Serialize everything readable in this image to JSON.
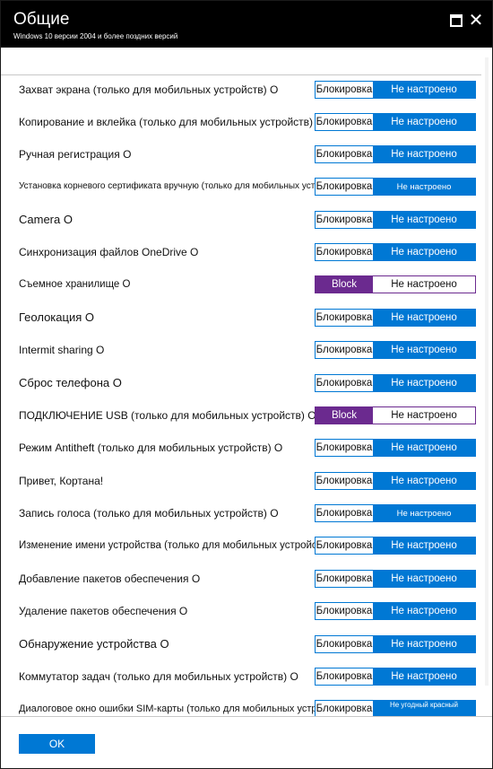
{
  "header": {
    "title": "Общие",
    "subtitle": "Windows 10 версии 2004 и более поздних версий",
    "maximize_icon": "maximize-icon",
    "close_icon": "close-icon",
    "close_glyph": "✕",
    "background": "#000000"
  },
  "colors": {
    "accent": "#0078d4",
    "block_purple": "#6b2a8f"
  },
  "settings": [
    {
      "label": "Захват экрана (только для мобильных устройств) О",
      "option_a": "Блокировка",
      "option_b": "Не настроено",
      "selected": "b"
    },
    {
      "label": "Копирование и вклейка (только для мобильных устройств) О",
      "option_a": "Блокировка",
      "option_b": "Не настроено",
      "selected": "b"
    },
    {
      "label": "Ручная регистрация О",
      "option_a": "Блокировка",
      "option_b": "Не настроено",
      "selected": "b"
    },
    {
      "label": "Установка корневого сертификата вручную (только для мобильных устройств) О",
      "option_a": "Блокировка",
      "option_b": "Не настроено",
      "selected": "b"
    },
    {
      "label": "Camera О",
      "option_a": "Блокировка",
      "option_b": "Не настроено",
      "selected": "b"
    },
    {
      "label": "Синхронизация файлов OneDrive О",
      "option_a": "Блокировка",
      "option_b": "Не настроено",
      "selected": "b"
    },
    {
      "label": "Съемное хранилище О",
      "option_a": "Block",
      "option_b": "Не настроено",
      "selected": "a"
    },
    {
      "label": "Геолокация О",
      "option_a": "Блокировка",
      "option_b": "Не настроено",
      "selected": "b"
    },
    {
      "label": "Intermit sharing О",
      "option_a": "Блокировка",
      "option_b": "Не настроено",
      "selected": "b"
    },
    {
      "label": "Сброс телефона О",
      "option_a": "Блокировка",
      "option_b": "Не настроено",
      "selected": "b"
    },
    {
      "label": "ПОДКЛЮЧЕНИЕ USB (только для мобильных устройств) О",
      "option_a": "Block",
      "option_b": "Не настроено",
      "selected": "a"
    },
    {
      "label": "Режим Antitheft (только для мобильных устройств) О",
      "option_a": "Блокировка",
      "option_b": "Не настроено",
      "selected": "b"
    },
    {
      "label": "Привет, Кортана!",
      "option_a": "Блокировка",
      "option_b": "Не настроено",
      "selected": "b"
    },
    {
      "label": "Запись голоса (только для мобильных устройств) О",
      "option_a": "Блокировка",
      "option_b": "Не настроено",
      "selected": "b"
    },
    {
      "label": "Изменение имени устройства (только для мобильных устройств) О",
      "option_a": "Блокировка",
      "option_b": "Не настроено",
      "selected": "b"
    },
    {
      "label": "Добавление пакетов обеспечения О",
      "option_a": "Блокировка",
      "option_b": "Не настроено",
      "selected": "b"
    },
    {
      "label": "Удаление пакетов обеспечения О",
      "option_a": "Блокировка",
      "option_b": "Не настроено",
      "selected": "b"
    },
    {
      "label": "Обнаружение устройства О",
      "option_a": "Блокировка",
      "option_b": "Не настроено",
      "selected": "b"
    },
    {
      "label": "Коммутатор задач (только для мобильных устройств) О",
      "option_a": "Блокировка",
      "option_b": "Не настроено",
      "selected": "b"
    },
    {
      "label": "Диалоговое окно ошибки SIM-карты (только для мобильных устройств) О",
      "option_a": "Блокировка",
      "option_b": "Не угодный красный",
      "selected": "b"
    }
  ],
  "footer": {
    "ok_label": "OK"
  }
}
